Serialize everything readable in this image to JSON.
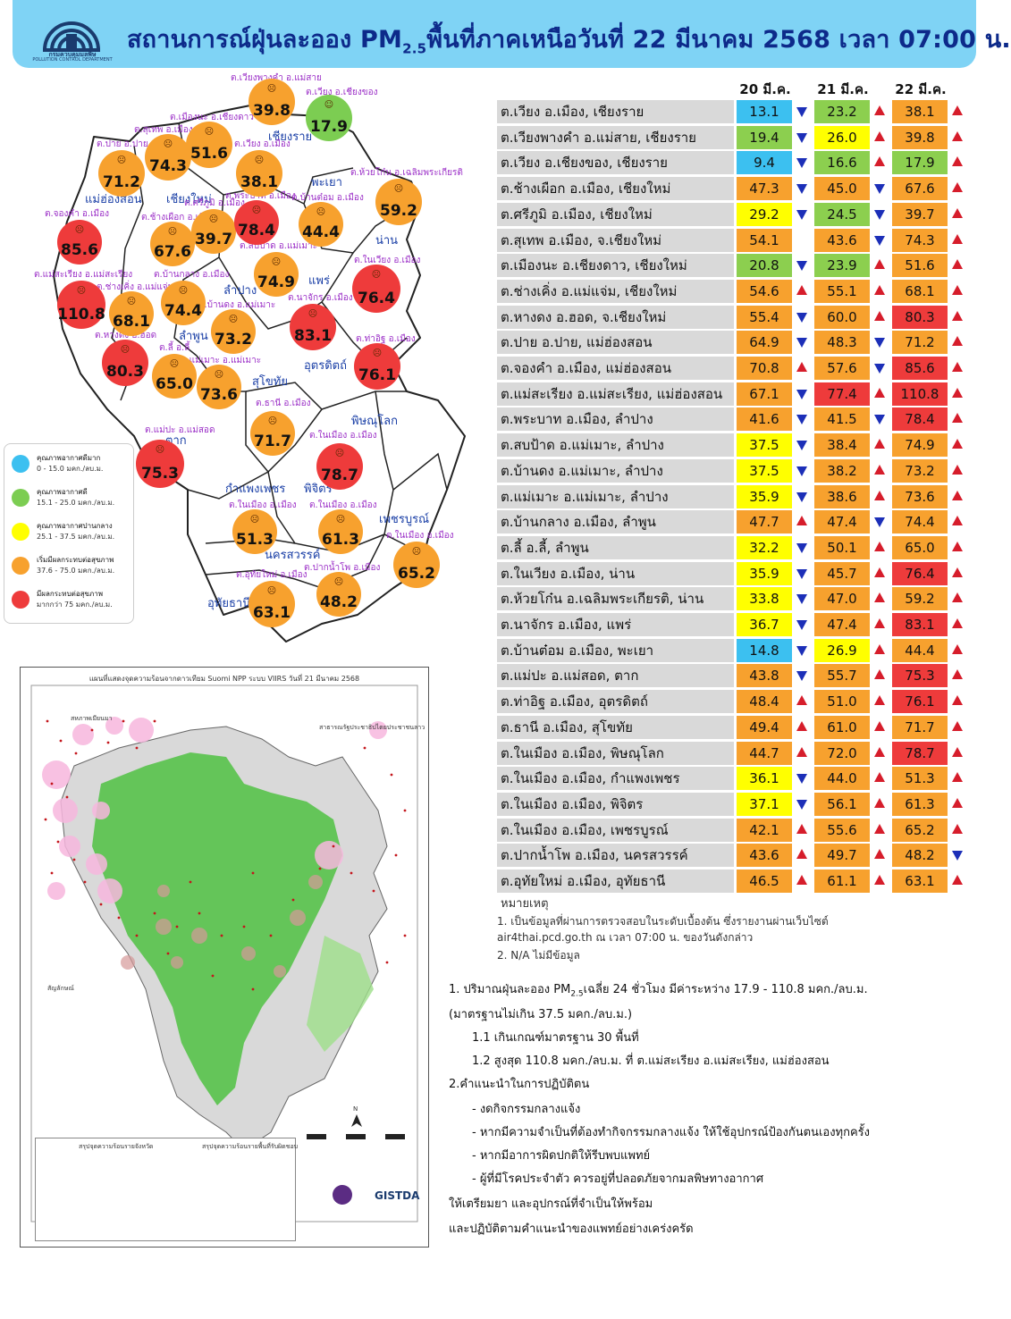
{
  "header": {
    "title_pre": "สถานการณ์ฝุ่นละออง PM",
    "title_sub": "2.5",
    "title_post": "พื้นที่ภาคเหนือวันที่ 22 มีนาคม 2568 เวลา 07:00 น.",
    "logo_text": "กรมควบคุมมลพิษ",
    "logo_en": "POLLUTION CONTROL DEPARTMENT"
  },
  "colors": {
    "very_good": "#3cc0f0",
    "good": "#8ccf4f",
    "moderate": "#ffff00",
    "start_affect": "#f7a12e",
    "affect": "#ee3b3b"
  },
  "map": {
    "provinces": [
      "แม่ฮ่องสอน",
      "เชียงใหม่",
      "เชียงราย",
      "พะเยา",
      "น่าน",
      "ลำปาง",
      "แพร่",
      "ลำพูน",
      "อุตรดิตถ์",
      "สุโขทัย",
      "ตาก",
      "พิษณุโลก",
      "กำแพงเพชร",
      "พิจิตร",
      "เพชรบูรณ์",
      "นครสวรรค์",
      "อุทัยธานี"
    ],
    "bubbles": [
      {
        "site": "ต.เวียงพางคำ อ.แม่สาย",
        "value": "39.8"
      },
      {
        "site": "ต.เวียง อ.เชียงของ",
        "value": "17.9"
      },
      {
        "site": "ต.เมืองนะ อ.เชียงดาว",
        "value": "51.6"
      },
      {
        "site": "ต.สุเทพ อ.เมือง",
        "value": "74.3"
      },
      {
        "site": "ต.ปาย อ.ปาย",
        "value": "71.2"
      },
      {
        "site": "ต.เวียง อ.เมือง",
        "value": "38.1"
      },
      {
        "site": "ต.ห้วยโก๋น อ.เฉลิมพระเกียรติ",
        "value": "59.2"
      },
      {
        "site": "ต.จองคำ อ.เมือง",
        "value": "85.6"
      },
      {
        "site": "ต.ช้างเผือก อ.เมือง",
        "value": "67.6"
      },
      {
        "site": "ต.ศรีภูมิ อ.เมือง",
        "value": "39.7"
      },
      {
        "site": "ต.พระบาท อ.เมือง",
        "value": "78.4"
      },
      {
        "site": "ต.บ้านต๋อม อ.เมือง",
        "value": "44.4"
      },
      {
        "site": "ต.แม่สะเรียง อ.แม่สะเรียง",
        "value": "110.8"
      },
      {
        "site": "ต.ช่างเคิ่ง อ.แม่แจ่ม",
        "value": "68.1"
      },
      {
        "site": "ต.บ้านกลาง อ.เมือง",
        "value": "74.4"
      },
      {
        "site": "ต.สบป้าด อ.แม่เมาะ",
        "value": "74.9"
      },
      {
        "site": "ต.ในเวียง อ.เมือง",
        "value": "76.4"
      },
      {
        "site": "ต.บ้านดง อ.แม่เมาะ",
        "value": "73.2"
      },
      {
        "site": "ต.นาจักร อ.เมือง",
        "value": "83.1"
      },
      {
        "site": "ต.หางดง อ.ฮอด",
        "value": "80.3"
      },
      {
        "site": "ต.ลี้ อ.ลี้",
        "value": "65.0"
      },
      {
        "site": "ต.แม่เมาะ อ.แม่เมาะ",
        "value": "73.6"
      },
      {
        "site": "ต.ท่าอิฐ อ.เมือง",
        "value": "76.1"
      },
      {
        "site": "ต.ธานี อ.เมือง",
        "value": "71.7"
      },
      {
        "site": "ต.แม่ปะ อ.แม่สอด",
        "value": "75.3"
      },
      {
        "site": "ต.ในเมือง อ.เมือง",
        "value": "78.7"
      },
      {
        "site": "ต.ในเมือง อ.เมือง",
        "value": "51.3"
      },
      {
        "site": "ต.ในเมือง อ.เมือง",
        "value": "61.3"
      },
      {
        "site": "ต.ในเมือง อ.เมือง",
        "value": "65.2"
      },
      {
        "site": "ต.ปากน้ำโพ อ.เมือง",
        "value": "48.2"
      },
      {
        "site": "ต.อุทัยใหม่ อ.เมือง",
        "value": "63.1"
      }
    ]
  },
  "legend": [
    {
      "title": "คุณภาพอากาศดีมาก",
      "range": "0 - 15.0 มคก./ลบ.ม."
    },
    {
      "title": "คุณภาพอากาศดี",
      "range": "15.1 - 25.0 มคก./ลบ.ม."
    },
    {
      "title": "คุณภาพอากาศปานกลาง",
      "range": "25.1 - 37.5 มคก./ลบ.ม."
    },
    {
      "title": "เริ่มมีผลกระทบต่อสุขภาพ",
      "range": "37.6 - 75.0 มคก./ลบ.ม."
    },
    {
      "title": "มีผลกระทบต่อสุขภาพ",
      "range": "มากกว่า 75 มคก./ลบ.ม."
    }
  ],
  "fire_map": {
    "title": "แผนที่แสดงจุดความร้อนจากดาวเทียม Suomi NPP ระบบ VIIRS วันที่ 21 มีนาคม 2568",
    "label_left": "สหภาพเมียนมา",
    "label_right": "สาธารณรัฐประชาธิปไตยประชาชนลาว",
    "legend_title": "สัญลักษณ์",
    "summary_left": "สรุปจุดความร้อนรายจังหวัด",
    "summary_right": "สรุปจุดความร้อนรายพื้นที่รับผิดชอบ",
    "gistda": "GISTDA",
    "north": "N"
  },
  "table": {
    "headers": [
      "20 มี.ค.",
      "21 มี.ค.",
      "22 มี.ค."
    ],
    "rows": [
      {
        "name": "ต.เวียง อ.เมือง, เชียงราย",
        "v": [
          "13.1",
          "23.2",
          "38.1"
        ],
        "c": [
          "very_good",
          "good",
          "start_affect"
        ],
        "t": [
          "down",
          "up",
          "up"
        ]
      },
      {
        "name": "ต.เวียงพางคำ อ.แม่สาย, เชียงราย",
        "v": [
          "19.4",
          "26.0",
          "39.8"
        ],
        "c": [
          "good",
          "moderate",
          "start_affect"
        ],
        "t": [
          "down",
          "up",
          "up"
        ]
      },
      {
        "name": "ต.เวียง อ.เชียงของ, เชียงราย",
        "v": [
          "9.4",
          "16.6",
          "17.9"
        ],
        "c": [
          "very_good",
          "good",
          "good"
        ],
        "t": [
          "down",
          "up",
          "up"
        ]
      },
      {
        "name": "ต.ช้างเผือก อ.เมือง, เชียงใหม่",
        "v": [
          "47.3",
          "45.0",
          "67.6"
        ],
        "c": [
          "start_affect",
          "start_affect",
          "start_affect"
        ],
        "t": [
          "down",
          "down",
          "up"
        ]
      },
      {
        "name": "ต.ศรีภูมิ อ.เมือง, เชียงใหม่",
        "v": [
          "29.2",
          "24.5",
          "39.7"
        ],
        "c": [
          "moderate",
          "good",
          "start_affect"
        ],
        "t": [
          "down",
          "down",
          "up"
        ]
      },
      {
        "name": "ต.สุเทพ  อ.เมือง, จ.เชียงใหม่",
        "v": [
          "54.1",
          "43.6",
          "74.3"
        ],
        "c": [
          "start_affect",
          "start_affect",
          "start_affect"
        ],
        "t": [
          "",
          "down",
          "up"
        ]
      },
      {
        "name": "ต.เมืองนะ อ.เชียงดาว, เชียงใหม่",
        "v": [
          "20.8",
          "23.9",
          "51.6"
        ],
        "c": [
          "good",
          "good",
          "start_affect"
        ],
        "t": [
          "down",
          "up",
          "up"
        ]
      },
      {
        "name": "ต.ช่างเคิ่ง อ.แม่แจ่ม, เชียงใหม่",
        "v": [
          "54.6",
          "55.1",
          "68.1"
        ],
        "c": [
          "start_affect",
          "start_affect",
          "start_affect"
        ],
        "t": [
          "up",
          "up",
          "up"
        ]
      },
      {
        "name": "ต.หางดง อ.ฮอด, จ.เชียงใหม่",
        "v": [
          "55.4",
          "60.0",
          "80.3"
        ],
        "c": [
          "start_affect",
          "start_affect",
          "affect"
        ],
        "t": [
          "down",
          "up",
          "up"
        ]
      },
      {
        "name": "ต.ปาย อ.ปาย, แม่ฮ่องสอน",
        "v": [
          "64.9",
          "48.3",
          "71.2"
        ],
        "c": [
          "start_affect",
          "start_affect",
          "start_affect"
        ],
        "t": [
          "down",
          "down",
          "up"
        ]
      },
      {
        "name": "ต.จองคำ อ.เมือง, แม่ฮ่องสอน",
        "v": [
          "70.8",
          "57.6",
          "85.6"
        ],
        "c": [
          "start_affect",
          "start_affect",
          "affect"
        ],
        "t": [
          "up",
          "down",
          "up"
        ]
      },
      {
        "name": "ต.แม่สะเรียง อ.แม่สะเรียง, แม่ฮ่องสอน",
        "v": [
          "67.1",
          "77.4",
          "110.8"
        ],
        "c": [
          "start_affect",
          "affect",
          "affect"
        ],
        "t": [
          "down",
          "up",
          "up"
        ]
      },
      {
        "name": "ต.พระบาท อ.เมือง, ลำปาง",
        "v": [
          "41.6",
          "41.5",
          "78.4"
        ],
        "c": [
          "start_affect",
          "start_affect",
          "affect"
        ],
        "t": [
          "down",
          "down",
          "up"
        ]
      },
      {
        "name": "ต.สบป้าด อ.แม่เมาะ, ลำปาง",
        "v": [
          "37.5",
          "38.4",
          "74.9"
        ],
        "c": [
          "moderate",
          "start_affect",
          "start_affect"
        ],
        "t": [
          "down",
          "up",
          "up"
        ]
      },
      {
        "name": "ต.บ้านดง อ.แม่เมาะ, ลำปาง",
        "v": [
          "37.5",
          "38.2",
          "73.2"
        ],
        "c": [
          "moderate",
          "start_affect",
          "start_affect"
        ],
        "t": [
          "down",
          "up",
          "up"
        ]
      },
      {
        "name": "ต.แม่เมาะ อ.แม่เมาะ, ลำปาง",
        "v": [
          "35.9",
          "38.6",
          "73.6"
        ],
        "c": [
          "moderate",
          "start_affect",
          "start_affect"
        ],
        "t": [
          "down",
          "up",
          "up"
        ]
      },
      {
        "name": "ต.บ้านกลาง อ.เมือง, ลำพูน",
        "v": [
          "47.7",
          "47.4",
          "74.4"
        ],
        "c": [
          "start_affect",
          "start_affect",
          "start_affect"
        ],
        "t": [
          "up",
          "down",
          "up"
        ]
      },
      {
        "name": "ต.ลี้ อ.ลี้, ลำพูน",
        "v": [
          "32.2",
          "50.1",
          "65.0"
        ],
        "c": [
          "moderate",
          "start_affect",
          "start_affect"
        ],
        "t": [
          "down",
          "up",
          "up"
        ]
      },
      {
        "name": "ต.ในเวียง อ.เมือง, น่าน",
        "v": [
          "35.9",
          "45.7",
          "76.4"
        ],
        "c": [
          "moderate",
          "start_affect",
          "affect"
        ],
        "t": [
          "down",
          "up",
          "up"
        ]
      },
      {
        "name": "ต.ห้วยโก๋น อ.เฉลิมพระเกียรติ, น่าน",
        "v": [
          "33.8",
          "47.0",
          "59.2"
        ],
        "c": [
          "moderate",
          "start_affect",
          "start_affect"
        ],
        "t": [
          "down",
          "up",
          "up"
        ]
      },
      {
        "name": "ต.นาจักร อ.เมือง, แพร่",
        "v": [
          "36.7",
          "47.4",
          "83.1"
        ],
        "c": [
          "moderate",
          "start_affect",
          "affect"
        ],
        "t": [
          "down",
          "up",
          "up"
        ]
      },
      {
        "name": "ต.บ้านต๋อม อ.เมือง, พะเยา",
        "v": [
          "14.8",
          "26.9",
          "44.4"
        ],
        "c": [
          "very_good",
          "moderate",
          "start_affect"
        ],
        "t": [
          "down",
          "up",
          "up"
        ]
      },
      {
        "name": "ต.แม่ปะ อ.แม่สอด, ตาก",
        "v": [
          "43.8",
          "55.7",
          "75.3"
        ],
        "c": [
          "start_affect",
          "start_affect",
          "affect"
        ],
        "t": [
          "down",
          "up",
          "up"
        ]
      },
      {
        "name": "ต.ท่าอิฐ อ.เมือง, อุตรดิตถ์",
        "v": [
          "48.4",
          "51.0",
          "76.1"
        ],
        "c": [
          "start_affect",
          "start_affect",
          "affect"
        ],
        "t": [
          "up",
          "up",
          "up"
        ]
      },
      {
        "name": "ต.ธานี อ.เมือง, สุโขทัย",
        "v": [
          "49.4",
          "61.0",
          "71.7"
        ],
        "c": [
          "start_affect",
          "start_affect",
          "start_affect"
        ],
        "t": [
          "up",
          "up",
          "up"
        ]
      },
      {
        "name": "ต.ในเมือง อ.เมือง, พิษณุโลก",
        "v": [
          "44.7",
          "72.0",
          "78.7"
        ],
        "c": [
          "start_affect",
          "start_affect",
          "affect"
        ],
        "t": [
          "up",
          "up",
          "up"
        ]
      },
      {
        "name": "ต.ในเมือง อ.เมือง, กำแพงเพชร",
        "v": [
          "36.1",
          "44.0",
          "51.3"
        ],
        "c": [
          "moderate",
          "start_affect",
          "start_affect"
        ],
        "t": [
          "down",
          "up",
          "up"
        ]
      },
      {
        "name": "ต.ในเมือง อ.เมือง, พิจิตร",
        "v": [
          "37.1",
          "56.1",
          "61.3"
        ],
        "c": [
          "moderate",
          "start_affect",
          "start_affect"
        ],
        "t": [
          "down",
          "up",
          "up"
        ]
      },
      {
        "name": "ต.ในเมือง อ.เมือง, เพชรบูรณ์",
        "v": [
          "42.1",
          "55.6",
          "65.2"
        ],
        "c": [
          "start_affect",
          "start_affect",
          "start_affect"
        ],
        "t": [
          "up",
          "up",
          "up"
        ]
      },
      {
        "name": "ต.ปากน้ำโพ อ.เมือง, นครสวรรค์",
        "v": [
          "43.6",
          "49.7",
          "48.2"
        ],
        "c": [
          "start_affect",
          "start_affect",
          "start_affect"
        ],
        "t": [
          "up",
          "up",
          "down"
        ]
      },
      {
        "name": "ต.อุทัยใหม่ อ.เมือง, อุทัยธานี",
        "v": [
          "46.5",
          "61.1",
          "63.1"
        ],
        "c": [
          "start_affect",
          "start_affect",
          "start_affect"
        ],
        "t": [
          "up",
          "up",
          "up"
        ]
      }
    ]
  },
  "notes": {
    "title": "หมายเหตุ",
    "line1": "1. เป็นข้อมูลที่ผ่านการตรวจสอบในระดับเบื้องต้น  ซึ่งรายงานผ่านเว็บไซต์",
    "line2": "air4thai.pcd.go.th  ณ  เวลา 07:00  น.  ของวันดังกล่าว",
    "line3": "2.  N/A  ไม่มีข้อมูล"
  },
  "summary": {
    "s1_pre": "1. ปริมาณฝุ่นละออง PM",
    "s1_sub": "2.5",
    "s1_post": "เฉลี่ย 24 ชั่วโมง มีค่าระหว่าง 17.9 - 110.8 มคก./ลบ.ม.",
    "s2": "(มาตรฐานไม่เกิน 37.5 มคก./ลบ.ม.)",
    "s3": "1.1 เกินเกณฑ์มาตรฐาน 30 พื้นที่",
    "s4": "1.2 สูงสุด 110.8 มคก./ลบ.ม. ที่ ต.แม่สะเรียง อ.แม่สะเรียง, แม่ฮ่องสอน",
    "s5": "2.คำแนะนำในการปฏิบัติตน",
    "s6": "-  งดกิจกรรมกลางแจ้ง",
    "s7": "-  หากมีความจำเป็นที่ต้องทำกิจกรรมกลางแจ้ง ให้ใช้อุปกรณ์ป้องกันตนเองทุกครั้ง",
    "s8": "-  หากมีอาการผิดปกติให้รีบพบแพทย์",
    "s9": "-  ผู้ที่มีโรคประจำตัว ควรอยู่ที่ปลอดภัยจากมลพิษทางอากาศ",
    "s10": "ให้เตรียมยา  และอุปกรณ์ที่จำเป็นให้พร้อม",
    "s11": "และปฏิบัติตามคำแนะนำของแพทย์อย่างเคร่งครัด"
  }
}
